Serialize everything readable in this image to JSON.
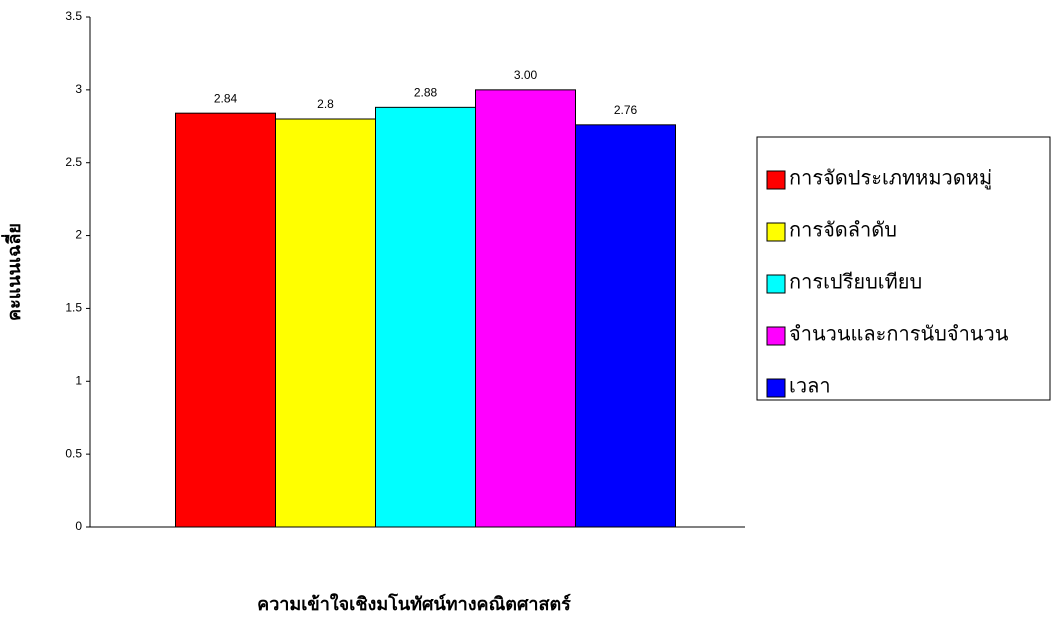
{
  "chart_data": {
    "type": "bar",
    "x_label": "ความเข้าใจเชิงมโนทัศน์ทางคณิตศาสตร์",
    "y_label": "คะแนนเฉลี่ย",
    "categories": [
      null
    ],
    "series": [
      {
        "name": "การจัดประเภทหมวดหมู่",
        "color": "#ff0000",
        "values": [
          2.84
        ],
        "value_labels": [
          "2.84"
        ]
      },
      {
        "name": "การจัดลำดับ",
        "color": "#ffff00",
        "values": [
          2.8
        ],
        "value_labels": [
          "2.8"
        ]
      },
      {
        "name": "การเปรียบเทียบ",
        "color": "#00ffff",
        "values": [
          2.88
        ],
        "value_labels": [
          "2.88"
        ]
      },
      {
        "name": "จำนวนและการนับจำนวน",
        "color": "#ff00ff",
        "values": [
          3
        ],
        "value_labels": [
          "3.00"
        ]
      },
      {
        "name": "เวลา",
        "color": "#0000ff",
        "values": [
          2.76
        ],
        "value_labels": [
          "2.76"
        ]
      }
    ],
    "ylim": [
      0,
      3.5
    ],
    "yticks": [
      0,
      0.5,
      1,
      1.5,
      2,
      2.5,
      3,
      3.5
    ],
    "grid": false,
    "legend": "right"
  }
}
